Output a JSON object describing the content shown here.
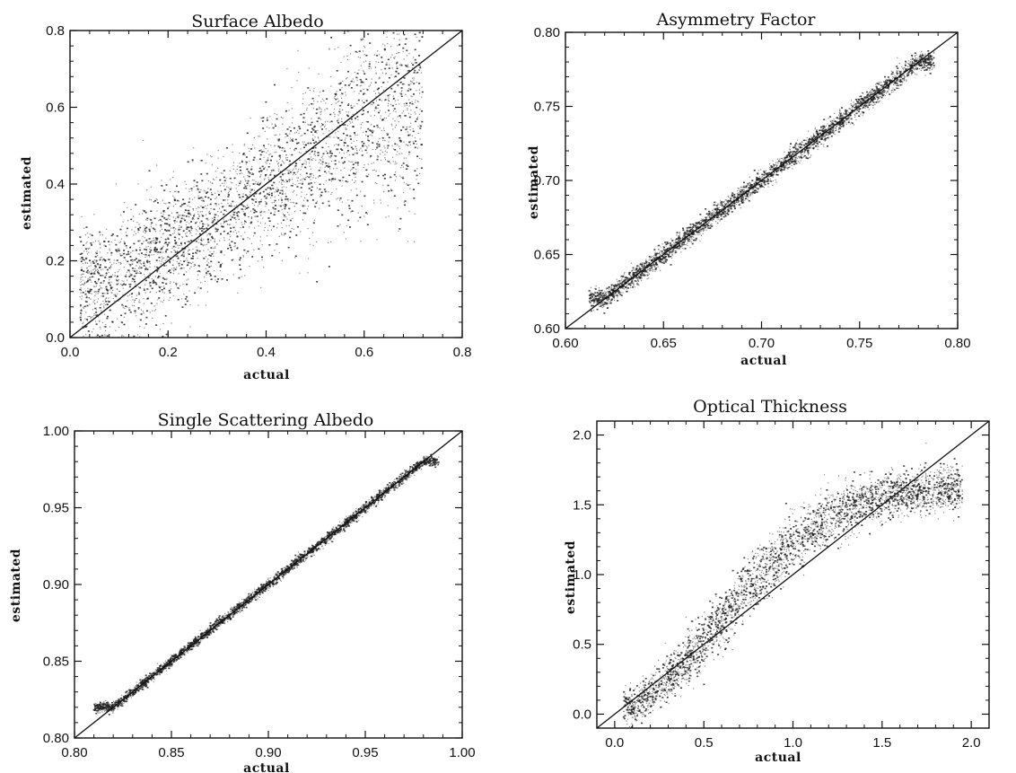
{
  "chart_data": [
    {
      "type": "scatter",
      "title": "Surface Albedo",
      "xlabel": "actual",
      "ylabel": "estimated",
      "xlim": [
        0.0,
        0.8
      ],
      "ylim": [
        0.0,
        0.8
      ],
      "xticks": [
        0.0,
        0.2,
        0.4,
        0.6,
        0.8
      ],
      "yticks": [
        0.0,
        0.2,
        0.4,
        0.6,
        0.8
      ],
      "xtick_labels": [
        "0.0",
        "0.2",
        "0.4",
        "0.6",
        "0.8"
      ],
      "ytick_labels": [
        "0.0",
        "0.2",
        "0.4",
        "0.6",
        "0.8"
      ],
      "reference_line": "y = x",
      "scatter_range": [
        0.02,
        0.72
      ],
      "series": [
        {
          "x": [
            0.05,
            0.1,
            0.15,
            0.2,
            0.25,
            0.3,
            0.35,
            0.4,
            0.45,
            0.5,
            0.55,
            0.6,
            0.65,
            0.7
          ],
          "y": [
            0.14,
            0.16,
            0.2,
            0.23,
            0.27,
            0.3,
            0.35,
            0.4,
            0.44,
            0.49,
            0.52,
            0.56,
            0.6,
            0.63
          ]
        }
      ],
      "spread": [
        0.09,
        0.1,
        0.11,
        0.11,
        0.1,
        0.1,
        0.1,
        0.11,
        0.12,
        0.13,
        0.14,
        0.15,
        0.16,
        0.17
      ],
      "grid": false
    },
    {
      "type": "scatter",
      "title": "Asymmetry Factor",
      "xlabel": "actual",
      "ylabel": "estimated",
      "xlim": [
        0.6,
        0.8
      ],
      "ylim": [
        0.6,
        0.8
      ],
      "xticks": [
        0.6,
        0.65,
        0.7,
        0.75,
        0.8
      ],
      "yticks": [
        0.6,
        0.65,
        0.7,
        0.75,
        0.8
      ],
      "xtick_labels": [
        "0.60",
        "0.65",
        "0.70",
        "0.75",
        "0.80"
      ],
      "ytick_labels": [
        "0.60",
        "0.65",
        "0.70",
        "0.75",
        "0.80"
      ],
      "reference_line": "y = x",
      "scatter_range": [
        0.612,
        0.788
      ],
      "series": [
        {
          "x": [
            0.62,
            0.64,
            0.66,
            0.68,
            0.7,
            0.72,
            0.74,
            0.76,
            0.78
          ],
          "y": [
            0.62,
            0.64,
            0.66,
            0.68,
            0.7,
            0.72,
            0.74,
            0.76,
            0.78
          ]
        }
      ],
      "spread": [
        0.004,
        0.004,
        0.004,
        0.004,
        0.004,
        0.004,
        0.004,
        0.004,
        0.004
      ],
      "grid": false
    },
    {
      "type": "scatter",
      "title": "Single Scattering Albedo",
      "xlabel": "actual",
      "ylabel": "estimated",
      "xlim": [
        0.8,
        1.0
      ],
      "ylim": [
        0.8,
        1.0
      ],
      "xticks": [
        0.8,
        0.85,
        0.9,
        0.95,
        1.0
      ],
      "yticks": [
        0.8,
        0.85,
        0.9,
        0.95,
        1.0
      ],
      "xtick_labels": [
        "0.80",
        "0.85",
        "0.90",
        "0.95",
        "1.00"
      ],
      "ytick_labels": [
        "0.80",
        "0.85",
        "0.90",
        "0.95",
        "1.00"
      ],
      "reference_line": "y = x",
      "scatter_range": [
        0.81,
        0.988
      ],
      "series": [
        {
          "x": [
            0.82,
            0.84,
            0.86,
            0.88,
            0.9,
            0.92,
            0.94,
            0.96,
            0.98
          ],
          "y": [
            0.82,
            0.84,
            0.86,
            0.88,
            0.9,
            0.92,
            0.94,
            0.96,
            0.98
          ]
        }
      ],
      "spread": [
        0.002,
        0.002,
        0.002,
        0.002,
        0.002,
        0.002,
        0.002,
        0.002,
        0.002
      ],
      "grid": false
    },
    {
      "type": "scatter",
      "title": "Optical Thickness",
      "xlabel": "actual",
      "ylabel": "estimated",
      "xlim": [
        -0.1,
        2.1
      ],
      "ylim": [
        -0.1,
        2.1
      ],
      "xticks": [
        0.0,
        0.5,
        1.0,
        1.5,
        2.0
      ],
      "yticks": [
        0.0,
        0.5,
        1.0,
        1.5,
        2.0
      ],
      "xtick_labels": [
        "0.0",
        "0.5",
        "1.0",
        "1.5",
        "2.0"
      ],
      "ytick_labels": [
        "0.0",
        "0.5",
        "1.0",
        "1.5",
        "2.0"
      ],
      "reference_line": "y = x",
      "scatter_range": [
        0.05,
        1.95
      ],
      "series": [
        {
          "x": [
            0.1,
            0.25,
            0.4,
            0.55,
            0.7,
            0.85,
            1.0,
            1.15,
            1.3,
            1.45,
            1.6,
            1.75,
            1.9
          ],
          "y": [
            0.05,
            0.2,
            0.38,
            0.6,
            0.82,
            1.05,
            1.22,
            1.36,
            1.47,
            1.54,
            1.58,
            1.6,
            1.61
          ]
        }
      ],
      "spread": [
        0.08,
        0.1,
        0.11,
        0.12,
        0.13,
        0.13,
        0.13,
        0.12,
        0.11,
        0.1,
        0.1,
        0.1,
        0.1
      ],
      "grid": false
    }
  ]
}
